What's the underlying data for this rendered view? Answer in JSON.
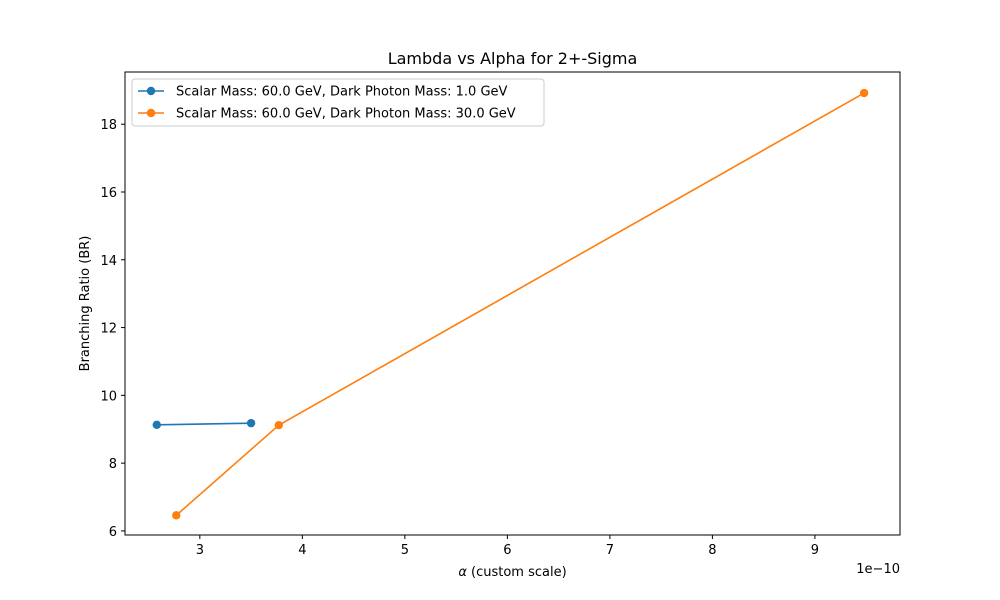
{
  "chart_data": {
    "type": "line",
    "title": "Lambda vs Alpha for 2+-Sigma",
    "xlabel_symbol": "α",
    "xlabel_text": " (custom scale)",
    "ylabel": "Branching Ratio (BR)",
    "x_offset_label": "1e−10",
    "xlim": [
      2.27,
      9.83
    ],
    "ylim": [
      5.88,
      19.54
    ],
    "xticks": [
      3,
      4,
      5,
      6,
      7,
      8,
      9
    ],
    "yticks": [
      6,
      8,
      10,
      12,
      14,
      16,
      18
    ],
    "grid": false,
    "legend_position": "top-left",
    "series": [
      {
        "name": "Scalar Mass: 60.0 GeV, Dark Photon Mass: 1.0 GeV",
        "color": "#1f77b4",
        "points": [
          [
            2.58,
            9.13
          ],
          [
            3.5,
            9.18
          ]
        ]
      },
      {
        "name": "Scalar Mass: 60.0 GeV, Dark Photon Mass: 30.0 GeV",
        "color": "#ff7f0e",
        "points": [
          [
            2.77,
            6.46
          ],
          [
            3.77,
            9.12
          ],
          [
            9.48,
            18.92
          ]
        ]
      }
    ]
  }
}
